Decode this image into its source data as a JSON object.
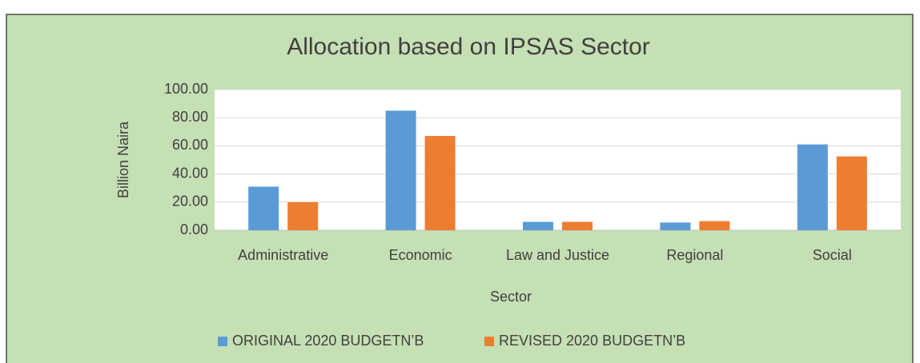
{
  "chart_data": {
    "type": "bar",
    "title": "Allocation based on IPSAS Sector",
    "x_label": "Sector",
    "y_label": "Billion Naira",
    "categories": [
      "Administrative",
      "Economic",
      "Law and Justice",
      "Regional",
      "Social"
    ],
    "series": [
      {
        "name": "ORIGINAL 2020 BUDGETN’B",
        "color": "#5b9bd5",
        "values": [
          31,
          85,
          6,
          5.5,
          61
        ]
      },
      {
        "name": "REVISED 2020 BUDGETN’B",
        "color": "#ed7d31",
        "values": [
          20,
          67,
          6,
          6.5,
          52.5
        ]
      }
    ],
    "ylim": [
      0,
      100
    ],
    "yticks": [
      {
        "value": 0,
        "label": "0.00"
      },
      {
        "value": 20,
        "label": "20.00"
      },
      {
        "value": 40,
        "label": "40.00"
      },
      {
        "value": 60,
        "label": "60.00"
      },
      {
        "value": 80,
        "label": "80.00"
      },
      {
        "value": 100,
        "label": "100.00"
      }
    ],
    "grid": true,
    "legend": "bottom"
  }
}
